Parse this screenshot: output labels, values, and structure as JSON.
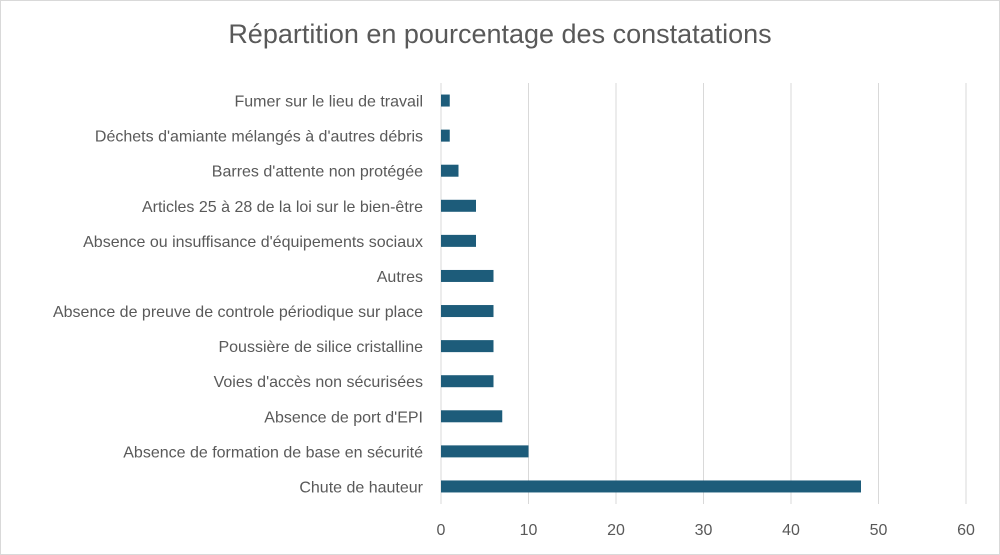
{
  "chart_data": {
    "type": "bar",
    "orientation": "horizontal",
    "title": "Répartition en pourcentage des constatations",
    "xlabel": "",
    "ylabel": "",
    "xlim": [
      0,
      60
    ],
    "ticks": [
      0,
      10,
      20,
      30,
      40,
      50,
      60
    ],
    "grid": true,
    "legend": "none",
    "bar_color": "#1d5c7a",
    "categories": [
      "Fumer sur le lieu de travail",
      "Déchets d'amiante mélangés à d'autres débris",
      "Barres d'attente non protégée",
      "Articles 25 à 28 de la loi sur le bien-être",
      "Absence ou insuffisance d'équipements sociaux",
      "Autres",
      "Absence de preuve de controle périodique sur place",
      "Poussière de silice cristalline",
      "Voies d'accès non sécurisées",
      "Absence de port d'EPI",
      "Absence de formation de base en sécurité",
      "Chute de hauteur"
    ],
    "values": [
      1,
      1,
      2,
      4,
      4,
      6,
      6,
      6,
      6,
      7,
      10,
      48
    ]
  }
}
